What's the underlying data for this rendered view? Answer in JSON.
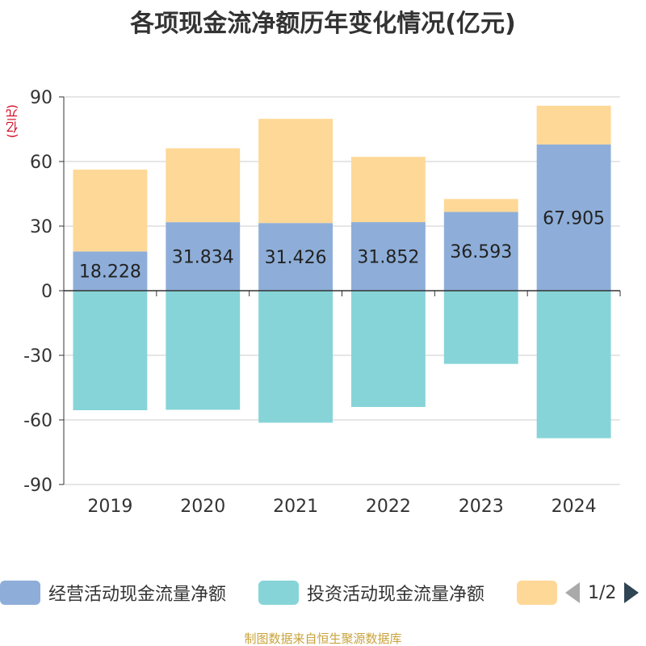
{
  "title": "各项现金流净额历年变化情况(亿元)",
  "unit_label": "(亿元)",
  "footer": "制图数据来自恒生聚源数据库",
  "pager": {
    "text": "1/2"
  },
  "colors": {
    "operating": "#8eaed9",
    "investing": "#86d4d8",
    "financing": "#fed897"
  },
  "chart_data": {
    "type": "bar",
    "stacked": true,
    "categories": [
      "2019",
      "2020",
      "2021",
      "2022",
      "2023",
      "2024"
    ],
    "ylim": [
      -90,
      90
    ],
    "yticks": [
      -90,
      -60,
      -30,
      0,
      30,
      60,
      90
    ],
    "grid": true,
    "legend_position": "bottom",
    "series": [
      {
        "name": "经营活动现金流量净额",
        "values": [
          18.228,
          31.834,
          31.426,
          31.852,
          36.593,
          67.905
        ]
      },
      {
        "name": "投资活动现金流量净额",
        "values": [
          -55.5,
          -55.3,
          -61.3,
          -54.0,
          -34.0,
          -68.5
        ]
      },
      {
        "name": "",
        "values": [
          38.0,
          34.3,
          48.4,
          30.3,
          6.0,
          18.0
        ]
      }
    ],
    "data_labels": [
      "18.228",
      "31.834",
      "31.426",
      "31.852",
      "36.593",
      "67.905"
    ]
  }
}
